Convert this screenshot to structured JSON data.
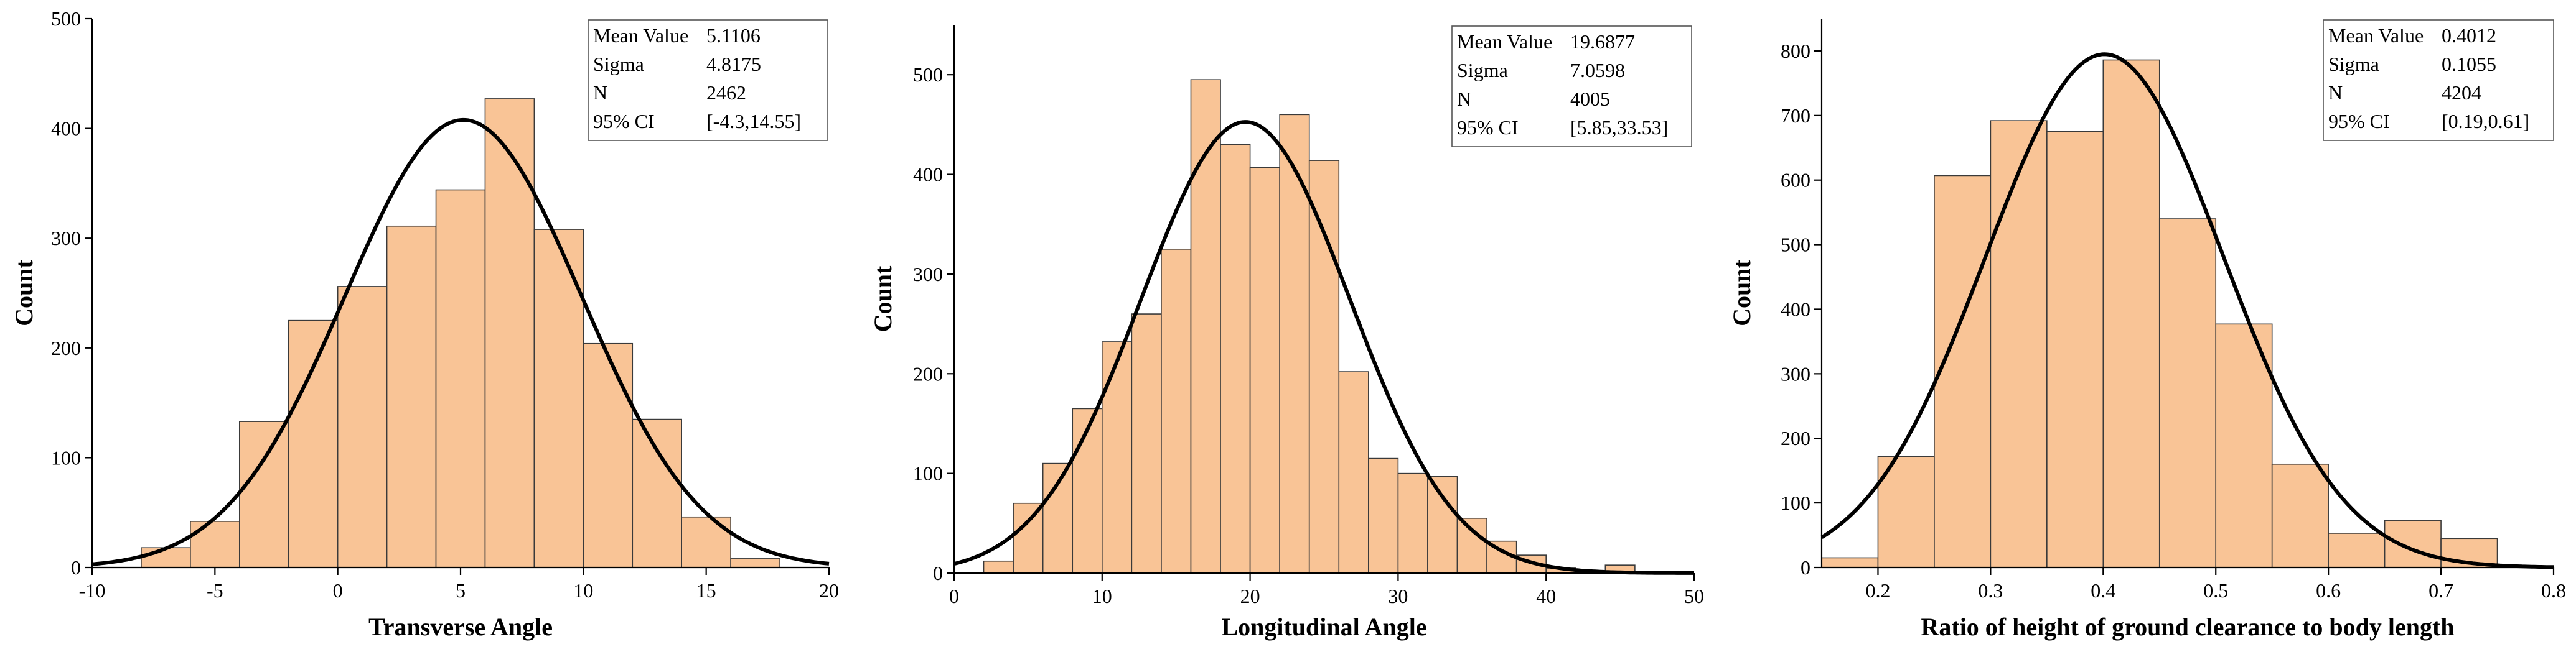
{
  "chart_data": [
    {
      "type": "bar",
      "title": "",
      "xlabel": "Transverse Angle",
      "ylabel": "Count",
      "xlim": [
        -10,
        20
      ],
      "ylim": [
        0,
        500
      ],
      "xticks": [
        -10,
        -5,
        0,
        5,
        10,
        15,
        20
      ],
      "yticks": [
        0,
        100,
        200,
        300,
        400,
        500
      ],
      "bin_width": 2,
      "bins_start": [
        -8,
        -6,
        -4,
        -2,
        0,
        2,
        4,
        6,
        8,
        10,
        12,
        14,
        16
      ],
      "values": [
        18,
        42,
        133,
        225,
        256,
        311,
        344,
        427,
        308,
        204,
        135,
        46,
        8
      ],
      "grid": false,
      "fit": {
        "type": "normal",
        "mean": 5.1106,
        "sigma": 4.8175,
        "n": 2462
      },
      "stats": [
        {
          "label": "Mean Value",
          "value": "5.1106"
        },
        {
          "label": "Sigma",
          "value": "4.8175"
        },
        {
          "label": "N",
          "value": "2462"
        },
        {
          "label": "95% CI",
          "value": "[-4.3,14.55]"
        }
      ]
    },
    {
      "type": "bar",
      "title": "",
      "xlabel": "Longitudinal Angle",
      "ylabel": "Count",
      "xlim": [
        0,
        50
      ],
      "ylim": [
        0,
        550
      ],
      "xticks": [
        0,
        10,
        20,
        30,
        40,
        50
      ],
      "yticks": [
        0,
        100,
        200,
        300,
        400,
        500
      ],
      "bin_width": 2,
      "bins_start": [
        2,
        4,
        6,
        8,
        10,
        12,
        14,
        16,
        18,
        20,
        22,
        24,
        26,
        28,
        30,
        32,
        34,
        36,
        38,
        40,
        42,
        44
      ],
      "values": [
        12,
        70,
        110,
        165,
        232,
        260,
        325,
        495,
        430,
        407,
        460,
        414,
        202,
        115,
        100,
        97,
        55,
        32,
        18,
        5,
        2,
        8
      ],
      "grid": false,
      "fit": {
        "type": "normal",
        "mean": 19.6877,
        "sigma": 7.0598,
        "n": 4005
      },
      "stats": [
        {
          "label": "Mean Value",
          "value": "19.6877"
        },
        {
          "label": "Sigma",
          "value": "7.0598"
        },
        {
          "label": "N",
          "value": "4005"
        },
        {
          "label": "95% CI",
          "value": "[5.85,33.53]"
        }
      ]
    },
    {
      "type": "bar",
      "title": "",
      "xlabel": "Ratio of height of ground clearance to body length",
      "ylabel": "Count",
      "xlim": [
        0.15,
        0.8
      ],
      "ylim": [
        0,
        850
      ],
      "xticks": [
        0.2,
        0.3,
        0.4,
        0.5,
        0.6,
        0.7,
        0.8
      ],
      "yticks": [
        0,
        100,
        200,
        300,
        400,
        500,
        600,
        700,
        800
      ],
      "bin_width": 0.05,
      "bins_start": [
        0.15,
        0.2,
        0.25,
        0.3,
        0.35,
        0.4,
        0.45,
        0.5,
        0.55,
        0.6,
        0.65,
        0.7
      ],
      "values": [
        15,
        172,
        607,
        692,
        675,
        786,
        540,
        377,
        160,
        53,
        73,
        45
      ],
      "grid": false,
      "fit": {
        "type": "normal",
        "mean": 0.4012,
        "sigma": 0.1055,
        "n": 4204
      },
      "stats": [
        {
          "label": "Mean Value",
          "value": "0.4012"
        },
        {
          "label": "Sigma",
          "value": "0.1055"
        },
        {
          "label": "N",
          "value": "4204"
        },
        {
          "label": "95% CI",
          "value": "[0.19,0.61]"
        }
      ]
    }
  ]
}
